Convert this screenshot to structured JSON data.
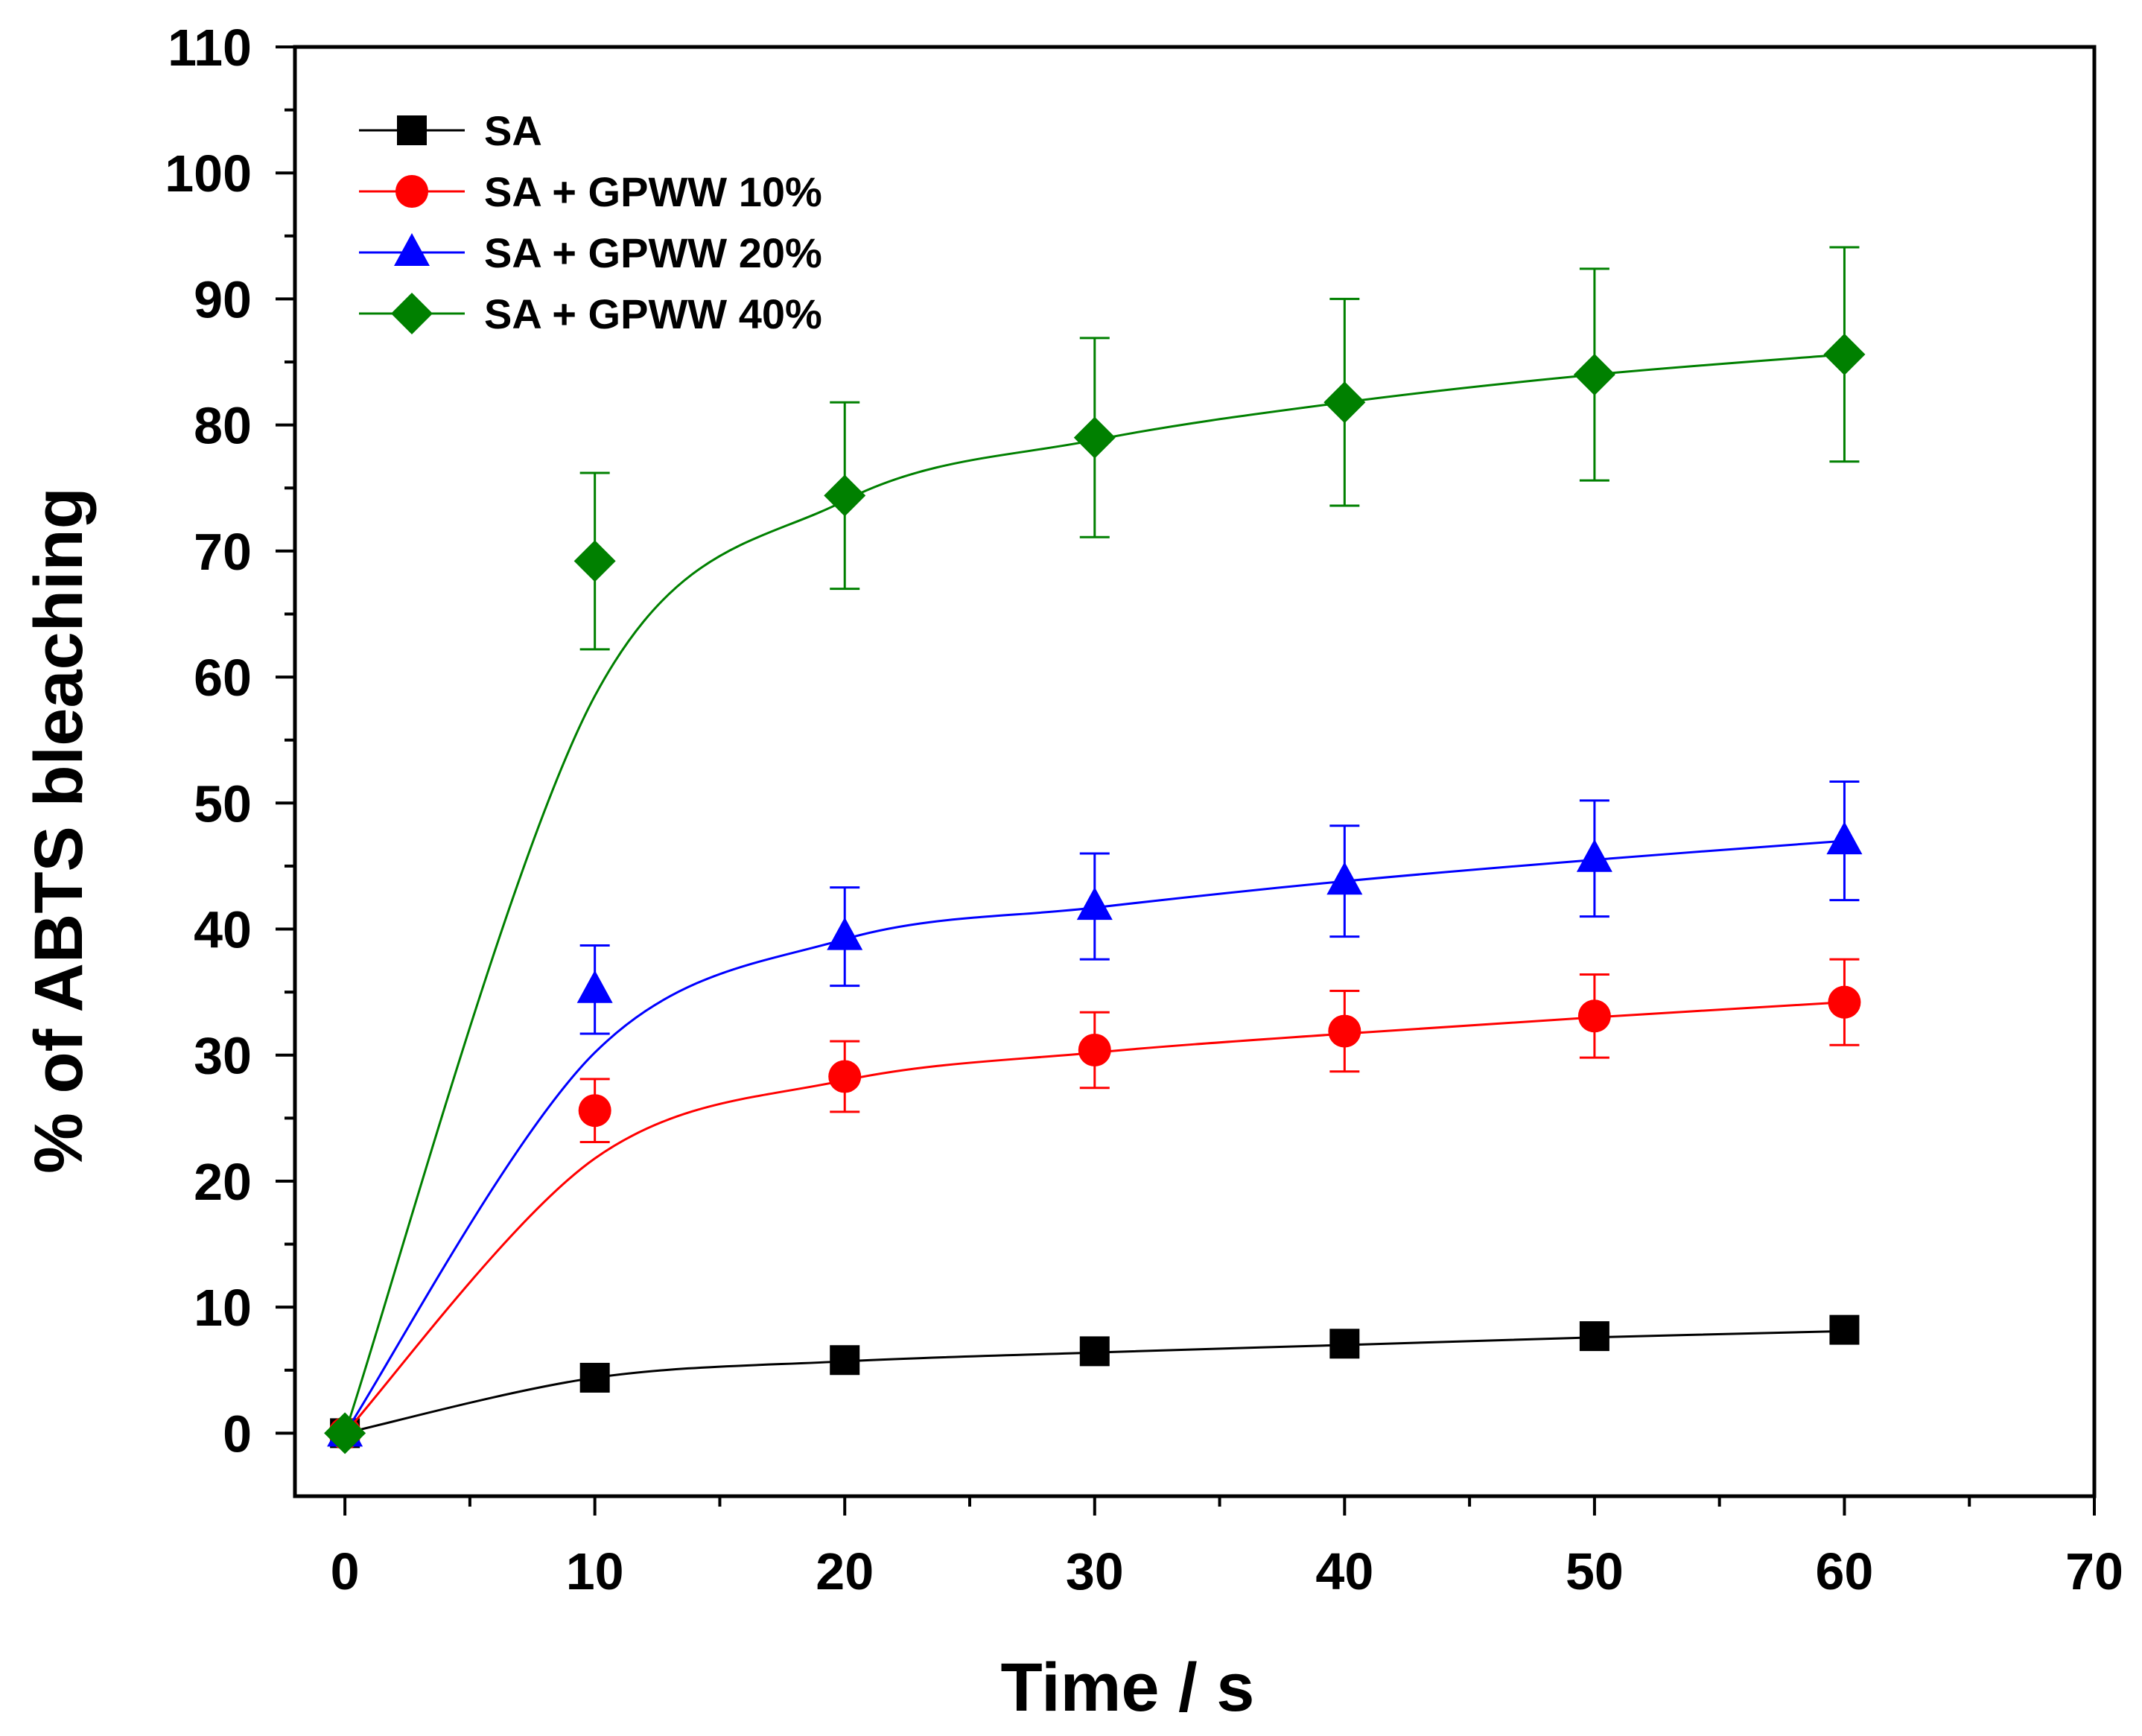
{
  "chart_data": {
    "type": "line",
    "xlabel": "Time / s",
    "ylabel": "% of ABTS bleaching",
    "xlim": [
      -2,
      70
    ],
    "ylim": [
      -5,
      110
    ],
    "xticks": [
      0,
      10,
      20,
      30,
      40,
      50,
      60,
      70
    ],
    "yticks": [
      0,
      10,
      20,
      30,
      40,
      50,
      60,
      70,
      80,
      90,
      100,
      110
    ],
    "grid": false,
    "legend_position": "top-left",
    "x": [
      0,
      10,
      20,
      30,
      40,
      50,
      60
    ],
    "series": [
      {
        "name": "SA",
        "color": "#000000",
        "marker": "square",
        "values": [
          0,
          4.4,
          5.8,
          6.5,
          7.1,
          7.7,
          8.2
        ],
        "errors": [
          0,
          0,
          0,
          0,
          0,
          0,
          0
        ],
        "fit": [
          0,
          4.4,
          5.7,
          6.4,
          7.0,
          7.6,
          8.1
        ]
      },
      {
        "name": "SA + GPWW 10%",
        "color": "#ff0000",
        "marker": "circle",
        "values": [
          0,
          25.6,
          28.3,
          30.4,
          31.9,
          33.1,
          34.2
        ],
        "errors": [
          0,
          2.5,
          2.8,
          3.0,
          3.2,
          3.3,
          3.4
        ],
        "fit": [
          0,
          21.8,
          28.0,
          30.2,
          31.7,
          33.0,
          34.2
        ]
      },
      {
        "name": "SA + GPWW 20%",
        "color": "#0000ff",
        "marker": "triangle",
        "values": [
          0,
          35.2,
          39.4,
          41.8,
          43.8,
          45.6,
          47.0
        ],
        "errors": [
          0,
          3.5,
          3.9,
          4.2,
          4.4,
          4.6,
          4.7
        ],
        "fit": [
          0,
          30.2,
          39.2,
          41.7,
          43.8,
          45.5,
          47.0
        ]
      },
      {
        "name": "SA + GPWW 40%",
        "color": "#008000",
        "marker": "diamond",
        "values": [
          0,
          69.2,
          74.4,
          79.0,
          81.8,
          84.0,
          85.6
        ],
        "errors": [
          0,
          7.0,
          7.4,
          7.9,
          8.2,
          8.4,
          8.5
        ],
        "fit": [
          0,
          58.5,
          74.0,
          78.8,
          81.8,
          84.0,
          85.6
        ]
      }
    ]
  }
}
